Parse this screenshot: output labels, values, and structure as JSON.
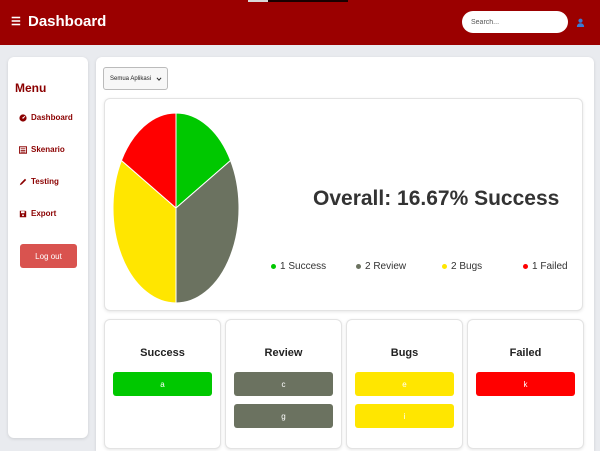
{
  "header": {
    "title": "Dashboard",
    "menu_icon": "hamburger-icon",
    "search": {
      "placeholder": "Search...",
      "value": ""
    },
    "user_icon": "user-icon",
    "brand_color": "#9b0000"
  },
  "sidebar": {
    "title": "Menu",
    "items": [
      {
        "label": "Dashboard",
        "icon": "dashboard-icon"
      },
      {
        "label": "Skenario",
        "icon": "list-icon"
      },
      {
        "label": "Testing",
        "icon": "pen-icon"
      },
      {
        "label": "Export",
        "icon": "save-icon"
      }
    ],
    "logout_label": "Log out"
  },
  "main": {
    "app_select": {
      "selected": "Semua Aplikasi"
    },
    "overall_text": "Overall: 16.67% Success",
    "legend": [
      {
        "label": "1 Success",
        "color": "#00c800"
      },
      {
        "label": "2 Review",
        "color": "#6b7260"
      },
      {
        "label": "2 Bugs",
        "color": "#ffe600"
      },
      {
        "label": "1 Failed",
        "color": "#ff0000"
      }
    ],
    "categories": [
      {
        "title": "Success",
        "color": "#00c800",
        "text_color": "#ffffff",
        "items": [
          "a"
        ]
      },
      {
        "title": "Review",
        "color": "#6b7260",
        "text_color": "#ffffff",
        "items": [
          "c",
          "g"
        ]
      },
      {
        "title": "Bugs",
        "color": "#ffe600",
        "text_color": "#ffffff",
        "items": [
          "e",
          "i"
        ]
      },
      {
        "title": "Failed",
        "color": "#ff0000",
        "text_color": "#ffffff",
        "items": [
          "k"
        ]
      }
    ]
  },
  "chart_data": {
    "type": "pie",
    "categories": [
      "Success",
      "Review",
      "Bugs",
      "Failed"
    ],
    "values": [
      1,
      2,
      2,
      1
    ],
    "colors": [
      "#00c800",
      "#6b7260",
      "#ffe600",
      "#ff0000"
    ]
  }
}
